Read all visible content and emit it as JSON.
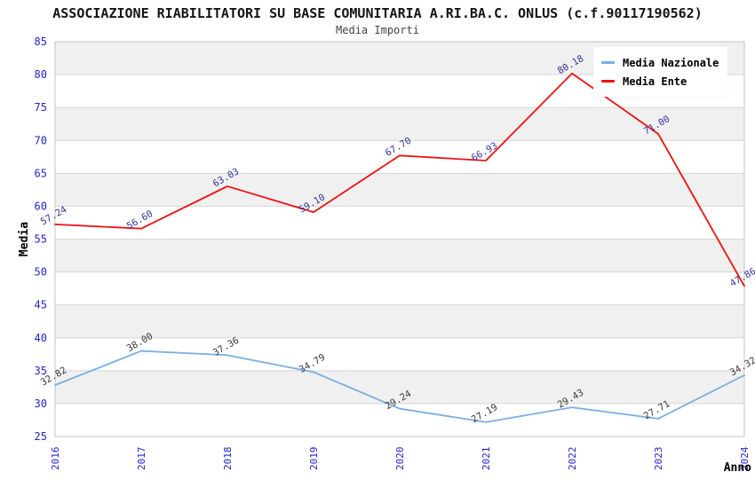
{
  "header": {
    "title": "ASSOCIAZIONE RIABILITATORI SU BASE COMUNITARIA A.RI.BA.C. ONLUS (c.f.90117190562)",
    "subtitle": "Media Importi"
  },
  "chart_data": {
    "type": "line",
    "title": "ASSOCIAZIONE RIABILITATORI SU BASE COMUNITARIA A.RI.BA.C. ONLUS (c.f.90117190562)",
    "subtitle": "Media Importi",
    "xlabel": "Anno",
    "ylabel": "Media",
    "ylim": [
      25,
      85
    ],
    "ytick_step": 5,
    "grid": "horizontal-alternating-bands",
    "legend_position": "top-right",
    "x": [
      "2016",
      "2017",
      "2018",
      "2019",
      "2020",
      "2021",
      "2022",
      "2023",
      "2024"
    ],
    "series": [
      {
        "name": "Media Nazionale",
        "color": "#79afe1",
        "label_color": "#3a3a3a",
        "values": [
          32.82,
          38.0,
          37.36,
          34.79,
          29.24,
          27.19,
          29.43,
          27.71,
          34.32
        ]
      },
      {
        "name": "Media Ente",
        "color": "#ee1111",
        "label_color": "#333399",
        "values": [
          57.24,
          56.6,
          63.03,
          59.1,
          67.7,
          66.93,
          80.18,
          71.0,
          47.86
        ]
      }
    ],
    "value_label_decimals": 2,
    "band_color": "#f0f0f0",
    "gridline_color": "#d6d6d6",
    "border_color": "#c4c4c4",
    "tick_color": "#2323cc"
  }
}
